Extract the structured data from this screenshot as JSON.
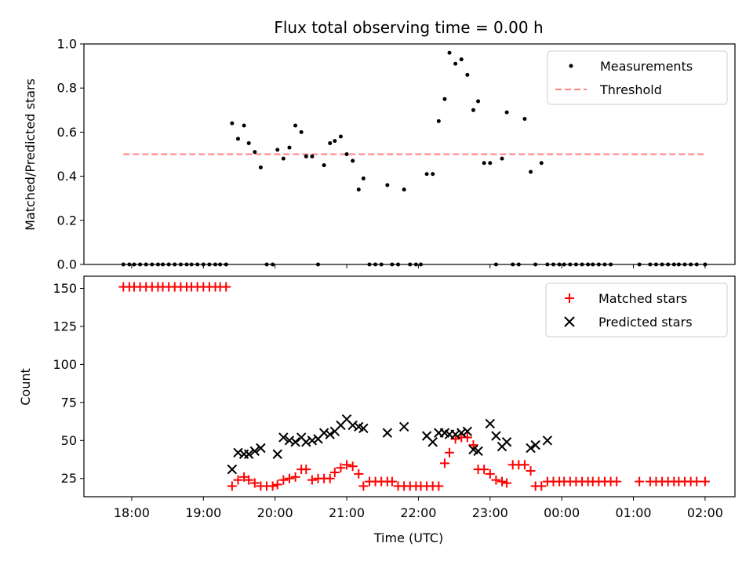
{
  "chart_data": [
    {
      "type": "scatter",
      "title": "Flux total observing time = 0.00 h",
      "xlabel": "",
      "ylabel": "Matched/Predicted stars",
      "x_unit": "time of day (UTC), decimal hours after 00:00 on first day",
      "xlim": [
        17.33,
        2.42
      ],
      "ylim": [
        0.0,
        1.0
      ],
      "yticks": [
        "0.0",
        "0.2",
        "0.4",
        "0.6",
        "0.8",
        "1.0"
      ],
      "xticks": [
        "18:00",
        "19:00",
        "20:00",
        "21:00",
        "22:00",
        "23:00",
        "00:00",
        "01:00",
        "02:00"
      ],
      "legend": {
        "placement": "upper right",
        "entries": [
          "Measurements",
          "Threshold"
        ]
      },
      "threshold": {
        "name": "Threshold",
        "value": 0.5,
        "x_range": [
          "17:53",
          "02:00"
        ],
        "color": "#ff7f7f"
      },
      "series": [
        {
          "name": "Measurements",
          "color": "#000000",
          "points": [
            [
              "17:53",
              0.0
            ],
            [
              "17:58",
              0.0
            ],
            [
              "18:02",
              0.0
            ],
            [
              "18:07",
              0.0
            ],
            [
              "18:12",
              0.0
            ],
            [
              "18:17",
              0.0
            ],
            [
              "18:22",
              0.0
            ],
            [
              "18:26",
              0.0
            ],
            [
              "18:31",
              0.0
            ],
            [
              "18:36",
              0.0
            ],
            [
              "18:41",
              0.0
            ],
            [
              "18:46",
              0.0
            ],
            [
              "18:50",
              0.0
            ],
            [
              "18:55",
              0.0
            ],
            [
              "19:00",
              0.0
            ],
            [
              "19:05",
              0.0
            ],
            [
              "19:10",
              0.0
            ],
            [
              "19:14",
              0.0
            ],
            [
              "19:19",
              0.0
            ],
            [
              "19:24",
              0.64
            ],
            [
              "19:29",
              0.57
            ],
            [
              "19:34",
              0.63
            ],
            [
              "19:38",
              0.55
            ],
            [
              "19:43",
              0.51
            ],
            [
              "19:48",
              0.44
            ],
            [
              "19:53",
              0.0
            ],
            [
              "19:58",
              0.0
            ],
            [
              "20:02",
              0.52
            ],
            [
              "20:07",
              0.48
            ],
            [
              "20:12",
              0.53
            ],
            [
              "20:17",
              0.63
            ],
            [
              "20:22",
              0.6
            ],
            [
              "20:26",
              0.49
            ],
            [
              "20:31",
              0.49
            ],
            [
              "20:36",
              0.0
            ],
            [
              "20:41",
              0.45
            ],
            [
              "20:46",
              0.55
            ],
            [
              "20:50",
              0.56
            ],
            [
              "20:55",
              0.58
            ],
            [
              "21:00",
              0.5
            ],
            [
              "21:05",
              0.47
            ],
            [
              "21:10",
              0.34
            ],
            [
              "21:14",
              0.39
            ],
            [
              "21:19",
              0.0
            ],
            [
              "21:24",
              0.0
            ],
            [
              "21:29",
              0.0
            ],
            [
              "21:34",
              0.36
            ],
            [
              "21:38",
              0.0
            ],
            [
              "21:43",
              0.0
            ],
            [
              "21:48",
              0.34
            ],
            [
              "21:53",
              0.0
            ],
            [
              "21:58",
              0.0
            ],
            [
              "22:02",
              0.0
            ],
            [
              "22:07",
              0.41
            ],
            [
              "22:12",
              0.41
            ],
            [
              "22:17",
              0.65
            ],
            [
              "22:22",
              0.75
            ],
            [
              "22:26",
              0.96
            ],
            [
              "22:31",
              0.91
            ],
            [
              "22:36",
              0.93
            ],
            [
              "22:41",
              0.86
            ],
            [
              "22:46",
              0.7
            ],
            [
              "22:50",
              0.74
            ],
            [
              "22:55",
              0.46
            ],
            [
              "23:00",
              0.46
            ],
            [
              "23:05",
              0.0
            ],
            [
              "23:10",
              0.48
            ],
            [
              "23:14",
              0.69
            ],
            [
              "23:19",
              0.0
            ],
            [
              "23:24",
              0.0
            ],
            [
              "23:29",
              0.66
            ],
            [
              "23:34",
              0.42
            ],
            [
              "23:38",
              0.0
            ],
            [
              "23:43",
              0.46
            ],
            [
              "23:48",
              0.0
            ],
            [
              "23:53",
              0.0
            ],
            [
              "23:58",
              0.0
            ],
            [
              "00:02",
              0.0
            ],
            [
              "00:07",
              0.0
            ],
            [
              "00:12",
              0.0
            ],
            [
              "00:17",
              0.0
            ],
            [
              "00:22",
              0.0
            ],
            [
              "00:26",
              0.0
            ],
            [
              "00:31",
              0.0
            ],
            [
              "00:36",
              0.0
            ],
            [
              "00:41",
              0.0
            ],
            [
              "01:05",
              0.0
            ],
            [
              "01:14",
              0.0
            ],
            [
              "01:19",
              0.0
            ],
            [
              "01:24",
              0.0
            ],
            [
              "01:29",
              0.0
            ],
            [
              "01:34",
              0.0
            ],
            [
              "01:38",
              0.0
            ],
            [
              "01:43",
              0.0
            ],
            [
              "01:48",
              0.0
            ],
            [
              "01:53",
              0.0
            ],
            [
              "02:00",
              0.0
            ]
          ]
        }
      ]
    },
    {
      "type": "scatter",
      "title": "",
      "xlabel": "Time (UTC)",
      "ylabel": "Count",
      "ylim": [
        13,
        158
      ],
      "yticks": [
        "25",
        "50",
        "75",
        "100",
        "125",
        "150"
      ],
      "xticks": [
        "18:00",
        "19:00",
        "20:00",
        "21:00",
        "22:00",
        "23:00",
        "00:00",
        "01:00",
        "02:00"
      ],
      "legend": {
        "placement": "upper right",
        "entries": [
          "Matched stars",
          "Predicted stars"
        ]
      },
      "series": [
        {
          "name": "Matched stars",
          "marker": "+",
          "color": "#ff0000",
          "points": [
            [
              "17:53",
              151
            ],
            [
              "17:58",
              151
            ],
            [
              "18:02",
              151
            ],
            [
              "18:07",
              151
            ],
            [
              "18:12",
              151
            ],
            [
              "18:17",
              151
            ],
            [
              "18:22",
              151
            ],
            [
              "18:26",
              151
            ],
            [
              "18:31",
              151
            ],
            [
              "18:36",
              151
            ],
            [
              "18:41",
              151
            ],
            [
              "18:46",
              151
            ],
            [
              "18:50",
              151
            ],
            [
              "18:55",
              151
            ],
            [
              "19:00",
              151
            ],
            [
              "19:05",
              151
            ],
            [
              "19:10",
              151
            ],
            [
              "19:14",
              151
            ],
            [
              "19:19",
              151
            ],
            [
              "19:24",
              20
            ],
            [
              "19:29",
              24
            ],
            [
              "19:34",
              26
            ],
            [
              "19:38",
              24
            ],
            [
              "19:43",
              22
            ],
            [
              "19:48",
              20
            ],
            [
              "19:53",
              20
            ],
            [
              "19:58",
              20
            ],
            [
              "20:02",
              21
            ],
            [
              "20:07",
              24
            ],
            [
              "20:12",
              25
            ],
            [
              "20:17",
              26
            ],
            [
              "20:22",
              31
            ],
            [
              "20:26",
              31
            ],
            [
              "20:31",
              24
            ],
            [
              "20:36",
              25
            ],
            [
              "20:41",
              25
            ],
            [
              "20:46",
              25
            ],
            [
              "20:50",
              29
            ],
            [
              "20:55",
              32
            ],
            [
              "21:00",
              34
            ],
            [
              "21:05",
              33
            ],
            [
              "21:10",
              28
            ],
            [
              "21:14",
              20
            ],
            [
              "21:19",
              23
            ],
            [
              "21:24",
              23
            ],
            [
              "21:29",
              23
            ],
            [
              "21:34",
              23
            ],
            [
              "21:38",
              23
            ],
            [
              "21:43",
              20
            ],
            [
              "21:48",
              20
            ],
            [
              "21:53",
              20
            ],
            [
              "21:58",
              20
            ],
            [
              "22:02",
              20
            ],
            [
              "22:07",
              20
            ],
            [
              "22:12",
              20
            ],
            [
              "22:17",
              20
            ],
            [
              "22:22",
              35
            ],
            [
              "22:26",
              42
            ],
            [
              "22:31",
              51
            ],
            [
              "22:36",
              52
            ],
            [
              "22:41",
              52
            ],
            [
              "22:46",
              47
            ],
            [
              "22:50",
              31
            ],
            [
              "22:55",
              31
            ],
            [
              "23:00",
              28
            ],
            [
              "23:05",
              24
            ],
            [
              "23:10",
              23
            ],
            [
              "23:14",
              22
            ],
            [
              "23:19",
              34
            ],
            [
              "23:24",
              34
            ],
            [
              "23:29",
              34
            ],
            [
              "23:34",
              30
            ],
            [
              "23:38",
              20
            ],
            [
              "23:43",
              20
            ],
            [
              "23:48",
              23
            ],
            [
              "23:53",
              23
            ],
            [
              "23:58",
              23
            ],
            [
              "00:02",
              23
            ],
            [
              "00:07",
              23
            ],
            [
              "00:12",
              23
            ],
            [
              "00:17",
              23
            ],
            [
              "00:22",
              23
            ],
            [
              "00:26",
              23
            ],
            [
              "00:31",
              23
            ],
            [
              "00:36",
              23
            ],
            [
              "00:41",
              23
            ],
            [
              "00:46",
              23
            ],
            [
              "01:05",
              23
            ],
            [
              "01:14",
              23
            ],
            [
              "01:19",
              23
            ],
            [
              "01:24",
              23
            ],
            [
              "01:29",
              23
            ],
            [
              "01:34",
              23
            ],
            [
              "01:38",
              23
            ],
            [
              "01:43",
              23
            ],
            [
              "01:48",
              23
            ],
            [
              "01:53",
              23
            ],
            [
              "02:00",
              23
            ]
          ]
        },
        {
          "name": "Predicted stars",
          "marker": "x",
          "color": "#000000",
          "points": [
            [
              "19:24",
              31
            ],
            [
              "19:29",
              42
            ],
            [
              "19:34",
              41
            ],
            [
              "19:38",
              41
            ],
            [
              "19:43",
              43
            ],
            [
              "19:48",
              45
            ],
            [
              "20:02",
              41
            ],
            [
              "20:07",
              52
            ],
            [
              "20:12",
              50
            ],
            [
              "20:17",
              49
            ],
            [
              "20:22",
              52
            ],
            [
              "20:26",
              49
            ],
            [
              "20:31",
              50
            ],
            [
              "20:36",
              51
            ],
            [
              "20:41",
              55
            ],
            [
              "20:46",
              54
            ],
            [
              "20:50",
              56
            ],
            [
              "20:55",
              60
            ],
            [
              "21:00",
              64
            ],
            [
              "21:05",
              60
            ],
            [
              "21:10",
              59
            ],
            [
              "21:14",
              58
            ],
            [
              "21:34",
              55
            ],
            [
              "21:48",
              59
            ],
            [
              "22:07",
              53
            ],
            [
              "22:12",
              49
            ],
            [
              "22:17",
              55
            ],
            [
              "22:22",
              55
            ],
            [
              "22:26",
              54
            ],
            [
              "22:31",
              54
            ],
            [
              "22:36",
              55
            ],
            [
              "22:41",
              56
            ],
            [
              "22:46",
              44
            ],
            [
              "22:50",
              43
            ],
            [
              "23:00",
              61
            ],
            [
              "23:05",
              53
            ],
            [
              "23:10",
              46
            ],
            [
              "23:14",
              49
            ],
            [
              "23:34",
              45
            ],
            [
              "23:38",
              47
            ],
            [
              "23:48",
              50
            ]
          ]
        }
      ]
    }
  ]
}
